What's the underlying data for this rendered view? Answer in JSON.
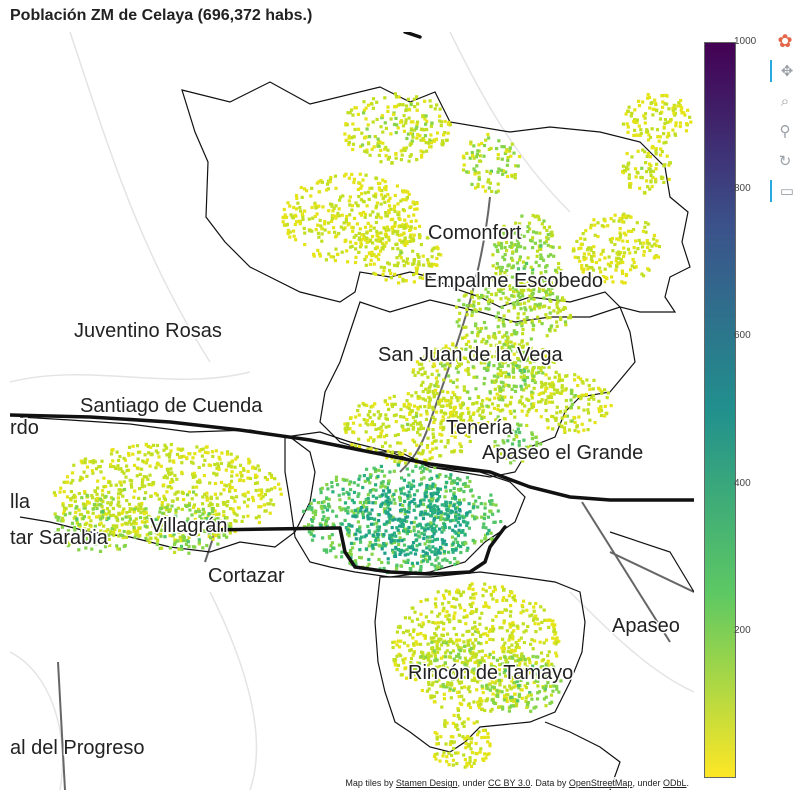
{
  "title": "Población ZM de Celaya (696,372 habs.)",
  "places": [
    {
      "name": "Comonfort"
    },
    {
      "name": "Empalme Escobedo"
    },
    {
      "name": "Juventino Rosas"
    },
    {
      "name": "San Juan de la Vega"
    },
    {
      "name": "Santiago de Cuenda"
    },
    {
      "name": "rdo"
    },
    {
      "name": "Tenería"
    },
    {
      "name": "Apaseo el Grande"
    },
    {
      "name": "lla"
    },
    {
      "name": "tar Sarabia"
    },
    {
      "name": "Villagrán"
    },
    {
      "name": "Cortazar"
    },
    {
      "name": "Apaseo"
    },
    {
      "name": "Rincón de Tamayo"
    },
    {
      "name": "al del Progreso"
    }
  ],
  "attribution": {
    "prefix": "Map tiles by ",
    "stamen": "Stamen Design",
    "mid1": ", under ",
    "ccby": "CC BY 3.0",
    "mid2": ". Data by ",
    "osm": "OpenStreetMap",
    "mid3": ", under ",
    "odbl": "ODbL",
    "end": "."
  },
  "colorbar": {
    "min": 0,
    "max": 1000,
    "palette": "viridis (reversed)",
    "ticks": [
      "1000",
      "800",
      "600",
      "400",
      "200"
    ],
    "tick_values": [
      1000,
      800,
      600,
      400,
      200
    ],
    "colors": [
      "#440154",
      "#3b528b",
      "#21908d",
      "#5dc863",
      "#fde725"
    ]
  },
  "toolbar": [
    {
      "name": "bokeh-logo-icon",
      "glyph": "✿",
      "active": false
    },
    {
      "name": "pan-icon",
      "glyph": "✥",
      "active": true
    },
    {
      "name": "box-zoom-icon",
      "glyph": "⌕",
      "active": false
    },
    {
      "name": "wheel-zoom-icon",
      "glyph": "⚲",
      "active": false
    },
    {
      "name": "reset-icon",
      "glyph": "↻",
      "active": false
    },
    {
      "name": "hover-icon",
      "glyph": "▭",
      "active": true
    }
  ]
}
